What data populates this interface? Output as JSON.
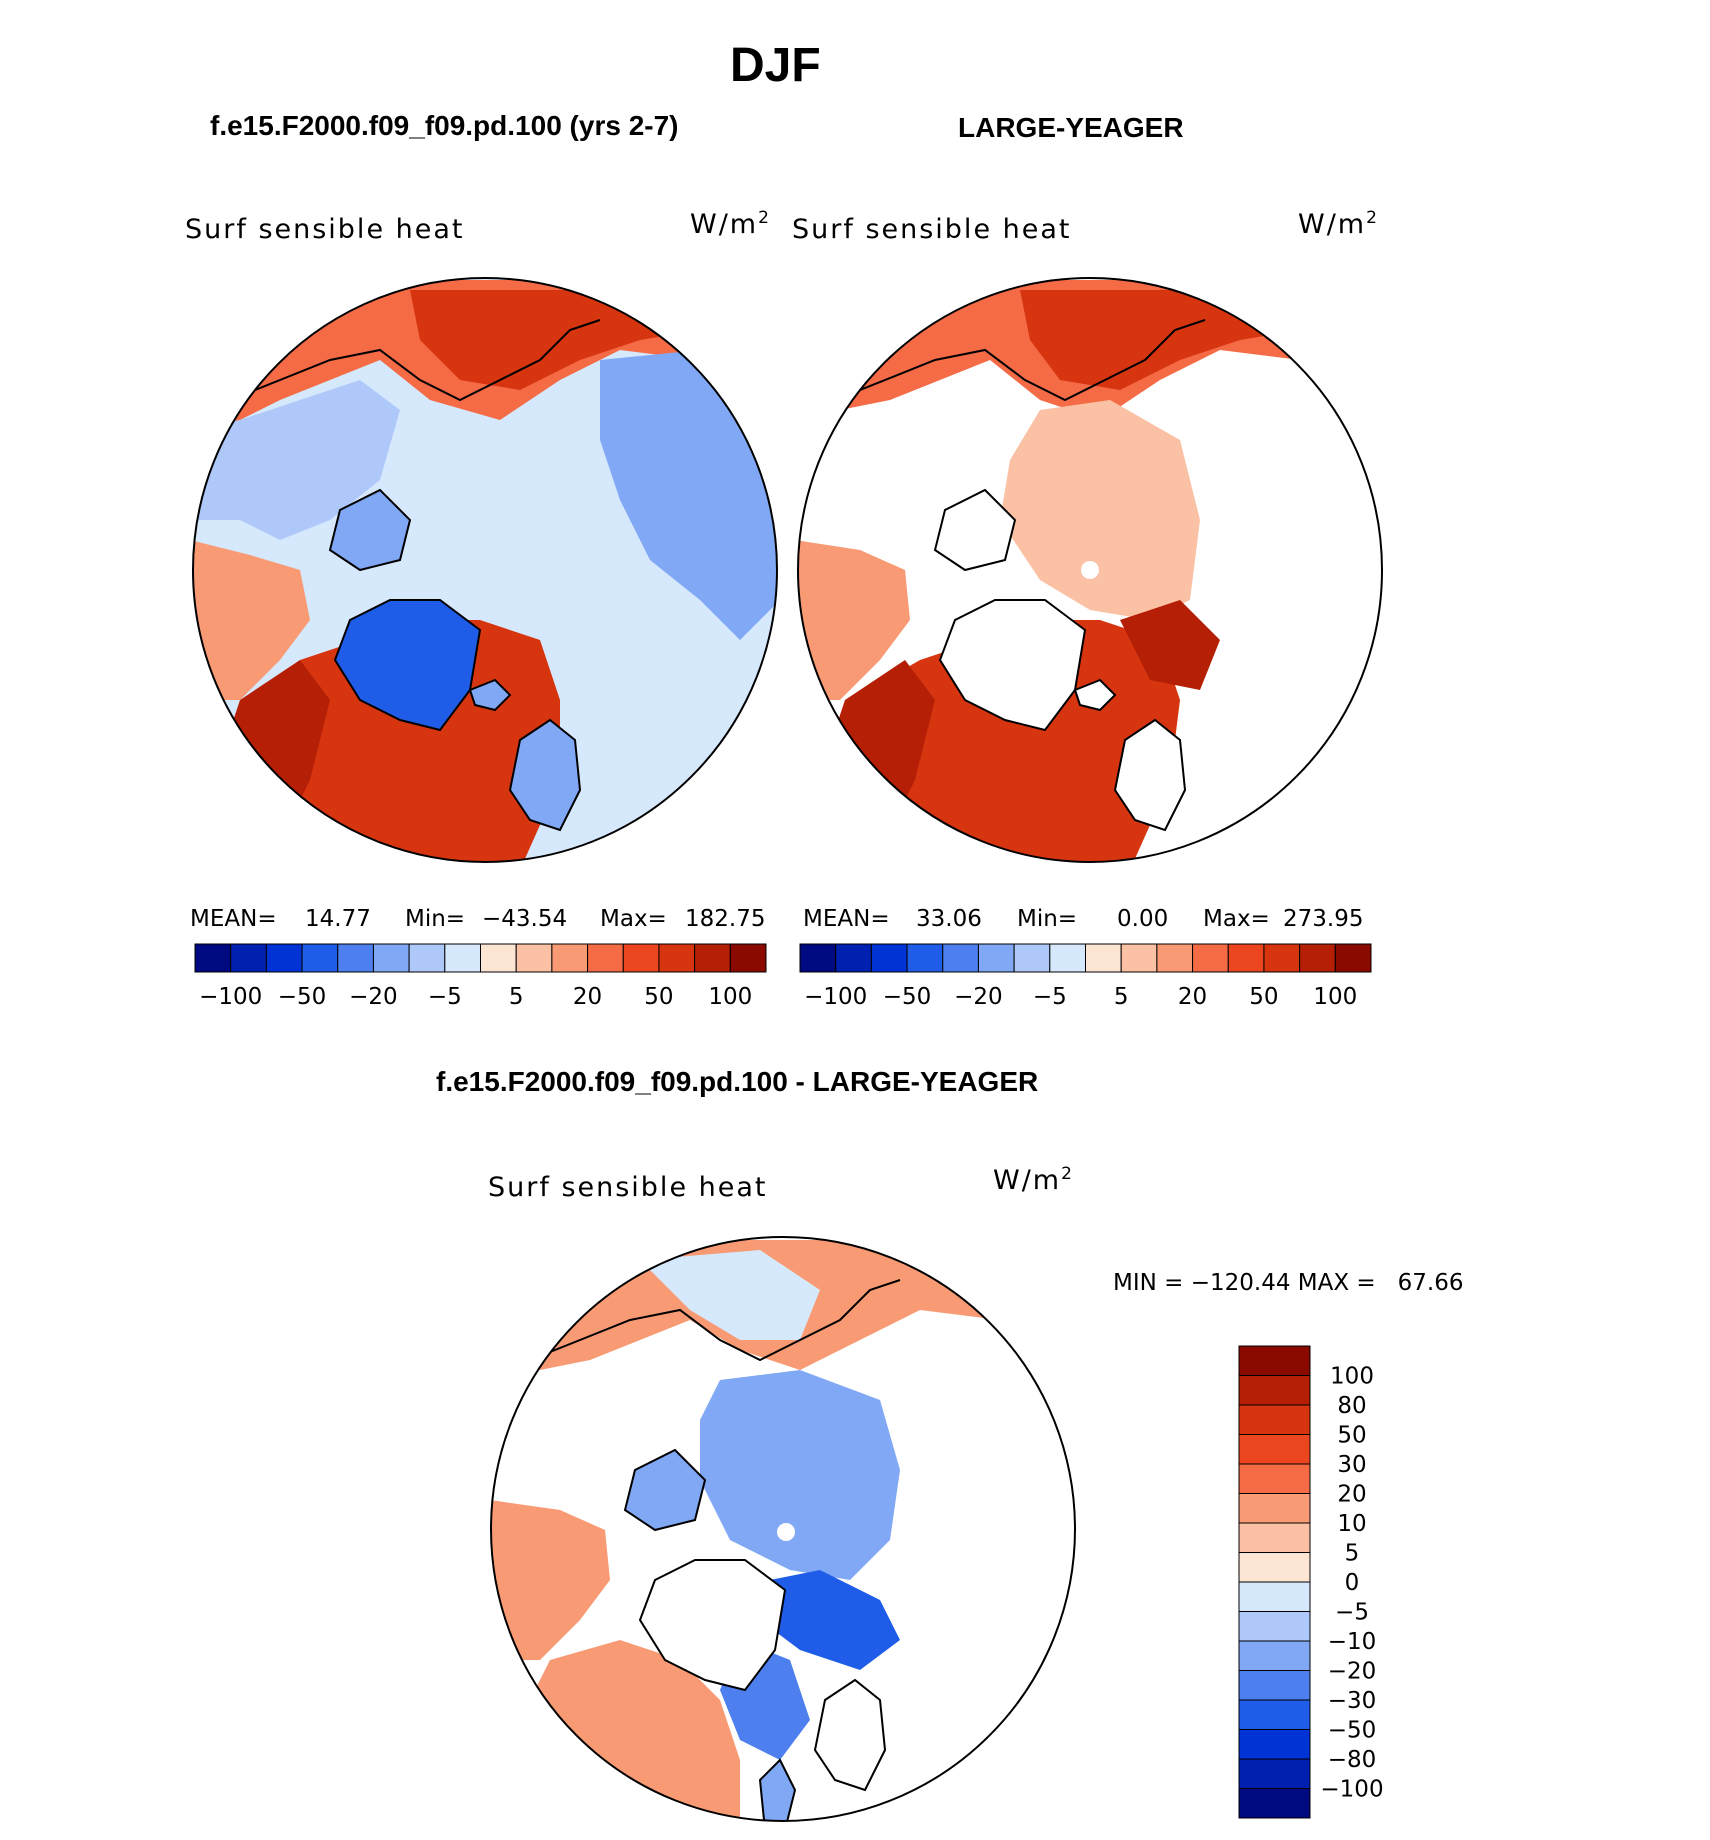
{
  "figure": {
    "title": "DJF",
    "panel_left_title": "f.e15.F2000.f09_f09.pd.100 (yrs 2-7)",
    "panel_right_title": "LARGE-YEAGER",
    "diff_title": "f.e15.F2000.f09_f09.pd.100 - LARGE-YEAGER"
  },
  "panels": {
    "left": {
      "variable": "Surf sensible heat",
      "units": "W/m",
      "units_sup": "2",
      "mean_label": "MEAN=",
      "mean_value": "14.77",
      "min_label": "Min=",
      "min_value": "−43.54",
      "max_label": "Max=",
      "max_value": "182.75"
    },
    "right": {
      "variable": "Surf sensible heat",
      "units": "W/m",
      "units_sup": "2",
      "mean_label": "MEAN=",
      "mean_value": "33.06",
      "min_label": "Min=",
      "min_value": "0.00",
      "max_label": "Max=",
      "max_value": "273.95"
    },
    "diff": {
      "variable": "Surf sensible heat",
      "units": "W/m",
      "units_sup": "2",
      "minmax_text": "MIN = −120.44 MAX =   67.66"
    }
  },
  "colorbar_top": {
    "colors": [
      "#000a80",
      "#0020b0",
      "#0033d6",
      "#1f5ce8",
      "#4d80ee",
      "#80a8f5",
      "#aec8fa",
      "#d6e8fc",
      "#fde5d3",
      "#fbc1a4",
      "#f89a74",
      "#f46b46",
      "#ec4620",
      "#d63510",
      "#b51f05",
      "#8b0a00"
    ],
    "tick_labels": [
      "−100",
      "−50",
      "−20",
      "−5",
      "5",
      "20",
      "50",
      "100"
    ]
  },
  "colorbar_diff": {
    "colors_top_to_bottom": [
      "#8b0a00",
      "#b51f05",
      "#d63510",
      "#ec4620",
      "#f46b46",
      "#f89a74",
      "#fbc1a4",
      "#fde5d3",
      "#d6e8fc",
      "#aec8fa",
      "#80a8f5",
      "#4d80ee",
      "#1f5ce8",
      "#0033d6",
      "#0020b0",
      "#000a80"
    ],
    "tick_labels_top_to_bottom": [
      "100",
      "80",
      "50",
      "30",
      "20",
      "10",
      "5",
      "0",
      "−5",
      "−10",
      "−20",
      "−30",
      "−50",
      "−80",
      "−100"
    ]
  },
  "colors": {
    "ocean_warm": "#f46b46",
    "ocean_hot": "#d63510",
    "ice_light": "#d6e8fc",
    "land_blue": "#80a8f5",
    "greenland_blue": "#1f5ce8",
    "white": "#ffffff"
  }
}
